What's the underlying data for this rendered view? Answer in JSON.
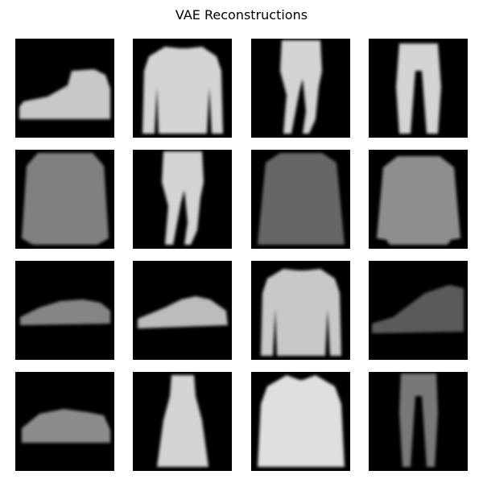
{
  "figure": {
    "title": "VAE Reconstructions"
  },
  "grid": {
    "rows": 4,
    "cols": 4,
    "background_color": "#000000",
    "foreground_color": "#e8e8e8",
    "tiles": [
      {
        "kind": "ankle-boot",
        "intensity": 0.85
      },
      {
        "kind": "long-sleeve-top",
        "intensity": 0.9
      },
      {
        "kind": "trousers-walking",
        "intensity": 0.9
      },
      {
        "kind": "trousers",
        "intensity": 0.9
      },
      {
        "kind": "top-blurry",
        "intensity": 0.8
      },
      {
        "kind": "trousers-walking",
        "intensity": 0.9
      },
      {
        "kind": "pullover-dim",
        "intensity": 0.6
      },
      {
        "kind": "pullover",
        "intensity": 0.75
      },
      {
        "kind": "sneaker-dim",
        "intensity": 0.7
      },
      {
        "kind": "sneaker",
        "intensity": 0.8
      },
      {
        "kind": "long-sleeve-top",
        "intensity": 0.85
      },
      {
        "kind": "sneaker-dark",
        "intensity": 0.6
      },
      {
        "kind": "sneaker-soft",
        "intensity": 0.7
      },
      {
        "kind": "dress",
        "intensity": 0.9
      },
      {
        "kind": "shirt",
        "intensity": 0.95
      },
      {
        "kind": "trousers-thin",
        "intensity": 0.75
      }
    ]
  }
}
